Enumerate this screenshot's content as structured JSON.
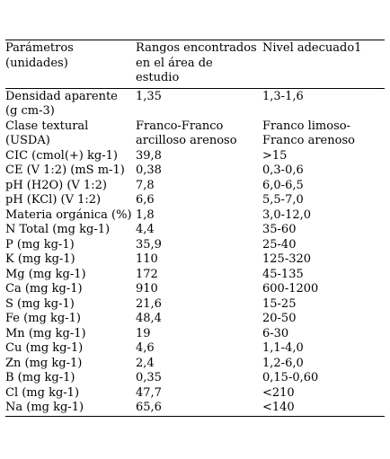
{
  "table": {
    "headers": [
      "Parámetros (unidades)",
      "Rangos encontrados en el área de estudio",
      "Nivel adecuado1"
    ],
    "rows": [
      [
        "Densidad aparente (g cm-3)",
        "1,35",
        "1,3-1,6"
      ],
      [
        "Clase textural (USDA)",
        "Franco-Franco arcilloso arenoso",
        "Franco limoso-Franco arenoso"
      ],
      [
        "CIC (cmol(+) kg-1)",
        "39,8",
        ">15"
      ],
      [
        "CE (V 1:2) (mS m-1)",
        "0,38",
        "0,3-0,6"
      ],
      [
        "pH (H2O) (V 1:2)",
        "7,8",
        "6,0-6,5"
      ],
      [
        "pH (KCl) (V 1:2)",
        "6,6",
        "5,5-7,0"
      ],
      [
        "Materia orgánica (%)",
        "1,8",
        "3,0-12,0"
      ],
      [
        "N Total (mg kg-1)",
        "4,4",
        "35-60"
      ],
      [
        "P (mg kg-1)",
        "35,9",
        "25-40"
      ],
      [
        "K (mg kg-1)",
        "110",
        "125-320"
      ],
      [
        "Mg (mg kg-1)",
        "172",
        "45-135"
      ],
      [
        "Ca (mg kg-1)",
        "910",
        "600-1200"
      ],
      [
        "S (mg kg-1)",
        "21,6",
        "15-25"
      ],
      [
        "Fe (mg kg-1)",
        "48,4",
        "20-50"
      ],
      [
        "Mn (mg kg-1)",
        "19",
        "6-30"
      ],
      [
        "Cu (mg kg-1)",
        "4,6",
        "1,1-4,0"
      ],
      [
        "Zn (mg kg-1)",
        "2,4",
        "1,2-6,0"
      ],
      [
        "B (mg kg-1)",
        "0,35",
        "0,15-0,60"
      ],
      [
        "Cl (mg kg-1)",
        "47,7",
        "<210"
      ],
      [
        "Na (mg kg-1)",
        "65,6",
        "<140"
      ]
    ]
  }
}
